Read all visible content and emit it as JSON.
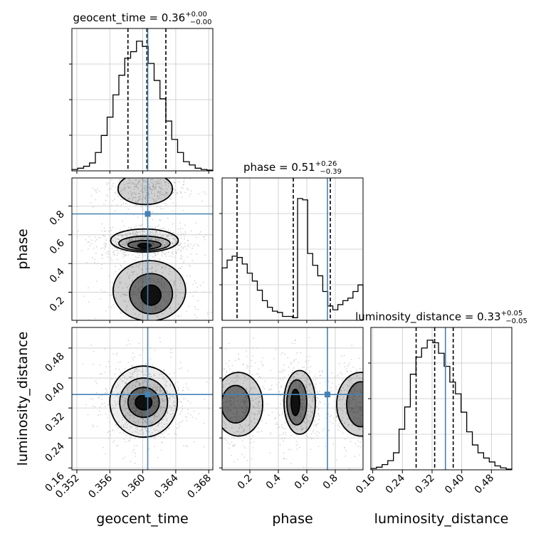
{
  "chart_data": {
    "type": "corner",
    "parameters": [
      "geocent_time",
      "phase",
      "luminosity_distance"
    ],
    "axis_labels": [
      "geocent_time",
      "phase",
      "luminosity_distance"
    ],
    "truths": {
      "geocent_time": 0.3606,
      "phase": 0.745,
      "luminosity_distance": 0.356
    },
    "ranges": {
      "geocent_time": [
        0.3514,
        0.3685
      ],
      "phase": [
        0.005,
        0.995
      ],
      "luminosity_distance": [
        0.155,
        0.535
      ]
    },
    "ticks": {
      "geocent_time": [
        0.352,
        0.356,
        0.36,
        0.364,
        0.368
      ],
      "phase": [
        0.2,
        0.4,
        0.6,
        0.8
      ],
      "luminosity_distance": [
        0.16,
        0.24,
        0.32,
        0.4,
        0.48
      ]
    },
    "tick_labels": {
      "geocent_time": [
        "0.352",
        "0.356",
        "0.360",
        "0.364",
        "0.368"
      ],
      "phase": [
        "0.2",
        "0.4",
        "0.6",
        "0.8"
      ],
      "luminosity_distance": [
        "0.16",
        "0.24",
        "0.32",
        "0.40",
        "0.48"
      ]
    },
    "quantiles": {
      "geocent_time": [
        0.3582,
        0.3605,
        0.3628
      ],
      "phase": [
        0.11,
        0.505,
        0.765
      ],
      "luminosity_distance": [
        0.277,
        0.327,
        0.377
      ]
    },
    "titles": {
      "geocent_time": {
        "name": "geocent_time",
        "value": "0.36",
        "plus": "+0.00",
        "minus": "−0.00"
      },
      "phase": {
        "name": "phase",
        "value": "0.51",
        "plus": "+0.26",
        "minus": "−0.39"
      },
      "luminosity_distance": {
        "name": "luminosity_distance",
        "value": "0.33",
        "plus": "+0.05",
        "minus": "−0.05"
      }
    },
    "histograms": {
      "geocent_time": [
        0.01,
        0.02,
        0.035,
        0.06,
        0.14,
        0.27,
        0.41,
        0.58,
        0.73,
        0.86,
        0.91,
        0.99,
        0.95,
        0.82,
        0.69,
        0.55,
        0.38,
        0.24,
        0.14,
        0.07,
        0.045,
        0.02,
        0.01,
        0.005
      ],
      "phase": [
        0.4,
        0.46,
        0.49,
        0.48,
        0.43,
        0.36,
        0.3,
        0.23,
        0.15,
        0.1,
        0.07,
        0.06,
        0.03,
        0.03,
        0.02,
        0.93,
        0.92,
        0.51,
        0.42,
        0.34,
        0.22,
        0.11,
        0.08,
        0.12,
        0.15,
        0.17,
        0.22,
        0.27
      ],
      "luminosity_distance": [
        0.01,
        0.02,
        0.04,
        0.07,
        0.13,
        0.31,
        0.48,
        0.73,
        0.86,
        0.93,
        0.99,
        0.97,
        0.89,
        0.79,
        0.67,
        0.58,
        0.44,
        0.29,
        0.19,
        0.13,
        0.09,
        0.06,
        0.03,
        0.015,
        0.005
      ]
    },
    "contours": {
      "phase_vs_geocent_time": [
        {
          "cx": 0.3602,
          "cy": 0.525,
          "rx": 0.0008,
          "ry": 0.015,
          "level": 1
        },
        {
          "cx": 0.3602,
          "cy": 0.53,
          "rx": 0.002,
          "ry": 0.03,
          "level": 2
        },
        {
          "cx": 0.3602,
          "cy": 0.54,
          "rx": 0.0031,
          "ry": 0.05,
          "level": 3
        },
        {
          "cx": 0.3602,
          "cy": 0.56,
          "rx": 0.0041,
          "ry": 0.08,
          "level": 4
        },
        {
          "cx": 0.361,
          "cy": 0.18,
          "rx": 0.0012,
          "ry": 0.07,
          "level": 1
        },
        {
          "cx": 0.361,
          "cy": 0.19,
          "rx": 0.0026,
          "ry": 0.14,
          "level": 2
        },
        {
          "cx": 0.3608,
          "cy": 0.21,
          "rx": 0.0044,
          "ry": 0.21,
          "level": 3
        },
        {
          "cx": 0.3603,
          "cy": 0.92,
          "rx": 0.0033,
          "ry": 0.11,
          "level": 3
        }
      ],
      "luminosity_distance_vs_geocent_time": [
        {
          "cx": 0.3601,
          "cy": 0.335,
          "rx": 0.001,
          "ry": 0.02,
          "level": 1
        },
        {
          "cx": 0.3601,
          "cy": 0.335,
          "rx": 0.0019,
          "ry": 0.04,
          "level": 2
        },
        {
          "cx": 0.3601,
          "cy": 0.335,
          "rx": 0.0029,
          "ry": 0.065,
          "level": 3
        },
        {
          "cx": 0.3601,
          "cy": 0.337,
          "rx": 0.0041,
          "ry": 0.095,
          "level": 4
        }
      ],
      "luminosity_distance_vs_phase": [
        {
          "cx": 0.52,
          "cy": 0.335,
          "rx": 0.03,
          "ry": 0.035,
          "level": 1
        },
        {
          "cx": 0.53,
          "cy": 0.335,
          "rx": 0.07,
          "ry": 0.06,
          "level": 2
        },
        {
          "cx": 0.55,
          "cy": 0.335,
          "rx": 0.11,
          "ry": 0.085,
          "level": 3
        },
        {
          "cx": 0.1,
          "cy": 0.33,
          "rx": 0.1,
          "ry": 0.05,
          "level": 2
        },
        {
          "cx": 0.12,
          "cy": 0.33,
          "rx": 0.17,
          "ry": 0.085,
          "level": 3
        },
        {
          "cx": 0.98,
          "cy": 0.33,
          "rx": 0.1,
          "ry": 0.06,
          "level": 2
        },
        {
          "cx": 0.98,
          "cy": 0.33,
          "rx": 0.17,
          "ry": 0.085,
          "level": 3
        }
      ]
    },
    "colors": {
      "truth": "#4682b4",
      "hist": "#000000",
      "grid": "#c8c8c8",
      "density": "#000000",
      "samples": "#b4b4b4"
    },
    "grid": true
  }
}
